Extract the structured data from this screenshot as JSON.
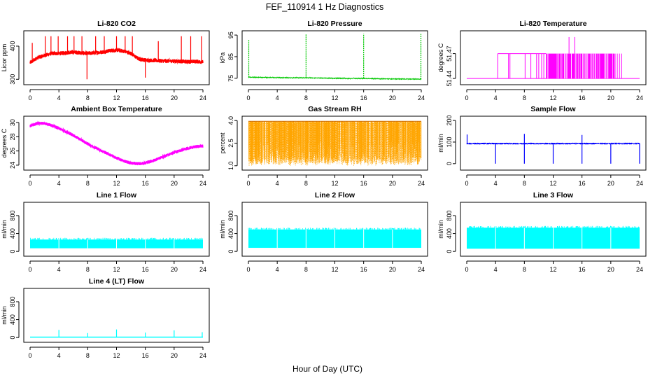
{
  "figure": {
    "title": "FEF_110914  1 Hz Diagnostics",
    "xlabel": "Hour of Day (UTC)"
  },
  "chart_data": [
    {
      "id": "co2",
      "type": "line",
      "title": "Li-820 CO2",
      "ylabel": "Licor ppm",
      "color": "#ff0000",
      "xlim": [
        0,
        24
      ],
      "ylim": [
        290,
        440
      ],
      "xticks": [
        0,
        4,
        8,
        12,
        16,
        20,
        24
      ],
      "yticks": [
        300,
        400
      ],
      "series": [
        {
          "x": [
            0,
            1,
            2,
            3,
            4,
            5,
            6,
            7,
            8,
            9,
            10,
            11,
            12,
            13,
            14,
            15,
            16,
            17,
            18,
            19,
            20,
            21,
            22,
            23,
            24
          ],
          "y": [
            350,
            365,
            372,
            378,
            378,
            380,
            382,
            380,
            378,
            380,
            382,
            386,
            388,
            385,
            378,
            362,
            358,
            357,
            356,
            355,
            355,
            354,
            353,
            354,
            352
          ],
          "band": 12,
          "spikes": [
            {
              "x": 0.3,
              "y": 410
            },
            {
              "x": 2.1,
              "y": 430
            },
            {
              "x": 2.9,
              "y": 430
            },
            {
              "x": 3.9,
              "y": 430
            },
            {
              "x": 5.2,
              "y": 430
            },
            {
              "x": 6.1,
              "y": 430
            },
            {
              "x": 7.2,
              "y": 430
            },
            {
              "x": 7.9,
              "y": 300
            },
            {
              "x": 9.1,
              "y": 430
            },
            {
              "x": 10.3,
              "y": 430
            },
            {
              "x": 12.0,
              "y": 430
            },
            {
              "x": 13.2,
              "y": 430
            },
            {
              "x": 14.2,
              "y": 430
            },
            {
              "x": 16.0,
              "y": 305
            },
            {
              "x": 17.8,
              "y": 415
            },
            {
              "x": 21.0,
              "y": 430
            },
            {
              "x": 22.3,
              "y": 430
            },
            {
              "x": 23.8,
              "y": 430
            }
          ]
        }
      ]
    },
    {
      "id": "pressure",
      "type": "line",
      "title": "Li-820 Pressure",
      "ylabel": "kPa",
      "color": "#00c800",
      "xlim": [
        0,
        24
      ],
      "ylim": [
        73,
        96
      ],
      "xticks": [
        0,
        4,
        8,
        12,
        16,
        20,
        24
      ],
      "yticks": [
        75,
        85,
        95
      ],
      "series": [
        {
          "x": [
            0,
            4,
            8,
            12,
            16,
            20,
            24
          ],
          "y": [
            75.5,
            75.3,
            75.2,
            75.0,
            74.9,
            74.7,
            74.6
          ],
          "band": 0.3,
          "spikes": [
            {
              "x": 0.05,
              "y": 93
            },
            {
              "x": 8.0,
              "y": 95.5
            },
            {
              "x": 16.0,
              "y": 95.5
            },
            {
              "x": 23.95,
              "y": 95.5
            }
          ]
        }
      ]
    },
    {
      "id": "licor_temp",
      "type": "line",
      "title": "Li-820 Temperature",
      "ylabel": "degrees C",
      "color": "#ff00ff",
      "xlim": [
        0,
        24
      ],
      "ylim": [
        51.435,
        51.495
      ],
      "xticks": [
        0,
        4,
        8,
        12,
        16,
        20,
        24
      ],
      "yticks": [
        51.44,
        51.47
      ],
      "series": [
        {
          "baseline": 51.44,
          "level": 51.47,
          "dense": [
            11,
            20.5
          ],
          "sparse": [
            4.3,
            5.8,
            6.0,
            8.1,
            8.9,
            9.7,
            10.0,
            10.4,
            10.7,
            20.6,
            20.9,
            21.2,
            21.5
          ],
          "spikes": [
            {
              "x": 14.2,
              "y": 51.49
            },
            {
              "x": 15.0,
              "y": 51.49
            }
          ]
        }
      ]
    },
    {
      "id": "box_temp",
      "type": "line",
      "title": "Ambient Box Temperature",
      "ylabel": "degrees C",
      "color": "#ff00ff",
      "xlim": [
        0,
        24
      ],
      "ylim": [
        23.6,
        30.6
      ],
      "xticks": [
        0,
        4,
        8,
        12,
        16,
        20,
        24
      ],
      "yticks": [
        24,
        26,
        28,
        30
      ],
      "series": [
        {
          "x": [
            0,
            1,
            2,
            3,
            4,
            5,
            6,
            7,
            8,
            9,
            10,
            11,
            12,
            13,
            14,
            15,
            16,
            17,
            18,
            19,
            20,
            21,
            22,
            23,
            24
          ],
          "y": [
            29.5,
            29.9,
            29.9,
            29.6,
            29.2,
            28.7,
            28.2,
            27.6,
            27.0,
            26.5,
            26.0,
            25.5,
            25.0,
            24.6,
            24.3,
            24.2,
            24.3,
            24.6,
            25.0,
            25.4,
            25.8,
            26.1,
            26.4,
            26.6,
            26.7
          ],
          "band": 0.45
        }
      ]
    },
    {
      "id": "rh",
      "type": "line",
      "title": "Gas Stream RH",
      "ylabel": "percent",
      "color": "#ffa500",
      "xlim": [
        0,
        24
      ],
      "ylim": [
        0.85,
        4.15
      ],
      "xticks": [
        0,
        4,
        8,
        12,
        16,
        20,
        24
      ],
      "yticks": [
        1.0,
        2.5,
        4.0
      ],
      "series": [
        {
          "top": 3.95,
          "base": 1.0
        }
      ]
    },
    {
      "id": "sample_flow",
      "type": "line",
      "title": "Sample Flow",
      "ylabel": "ml/min",
      "color": "#0000ff",
      "xlim": [
        0,
        24
      ],
      "ylim": [
        -20,
        210
      ],
      "xticks": [
        0,
        4,
        8,
        12,
        16,
        20,
        24
      ],
      "yticks": [
        0,
        100,
        200
      ],
      "series": [
        {
          "level": 93,
          "band": 8,
          "spikes": [
            {
              "x": 0.05,
              "y": 135
            },
            {
              "x": 4.0,
              "y": 0
            },
            {
              "x": 8.0,
              "y": 138
            },
            {
              "x": 8.0,
              "y": 0
            },
            {
              "x": 12.0,
              "y": 0
            },
            {
              "x": 16.0,
              "y": 133
            },
            {
              "x": 16.0,
              "y": 0
            },
            {
              "x": 20.0,
              "y": 0
            },
            {
              "x": 24.0,
              "y": 0
            }
          ]
        }
      ]
    },
    {
      "id": "line1",
      "type": "line",
      "title": "Line 1 Flow",
      "ylabel": "ml/min",
      "color": "#00ffff",
      "xlim": [
        0,
        24
      ],
      "ylim": [
        -60,
        1050
      ],
      "xticks": [
        0,
        4,
        8,
        12,
        16,
        20,
        24
      ],
      "yticks": [
        0,
        400,
        800
      ],
      "series": [
        {
          "low": 70,
          "high": 265
        }
      ]
    },
    {
      "id": "line2",
      "type": "line",
      "title": "Line 2 Flow",
      "ylabel": "ml/min",
      "color": "#00ffff",
      "xlim": [
        0,
        24
      ],
      "ylim": [
        -60,
        1050
      ],
      "xticks": [
        0,
        4,
        8,
        12,
        16,
        20,
        24
      ],
      "yticks": [
        0,
        400,
        800
      ],
      "series": [
        {
          "low": 80,
          "high": 490
        }
      ]
    },
    {
      "id": "line3",
      "type": "line",
      "title": "Line 3 Flow",
      "ylabel": "ml/min",
      "color": "#00ffff",
      "xlim": [
        0,
        24
      ],
      "ylim": [
        -60,
        1050
      ],
      "xticks": [
        0,
        4,
        8,
        12,
        16,
        20,
        24
      ],
      "yticks": [
        0,
        400,
        800
      ],
      "series": [
        {
          "low": 60,
          "high": 530
        }
      ]
    },
    {
      "id": "line4",
      "type": "line",
      "title": "Line 4 (LT) Flow",
      "ylabel": "ml/min",
      "color": "#00ffff",
      "xlim": [
        0,
        24
      ],
      "ylim": [
        -60,
        1050
      ],
      "xticks": [
        0,
        4,
        8,
        12,
        16,
        20,
        24
      ],
      "yticks": [
        0,
        400,
        800
      ],
      "series": [
        {
          "level": 8,
          "spikes": [
            {
              "x": 4.0,
              "y": 170
            },
            {
              "x": 8.0,
              "y": 100
            },
            {
              "x": 12.0,
              "y": 180
            },
            {
              "x": 16.0,
              "y": 110
            },
            {
              "x": 20.0,
              "y": 160
            },
            {
              "x": 23.9,
              "y": 120
            }
          ]
        }
      ]
    }
  ]
}
